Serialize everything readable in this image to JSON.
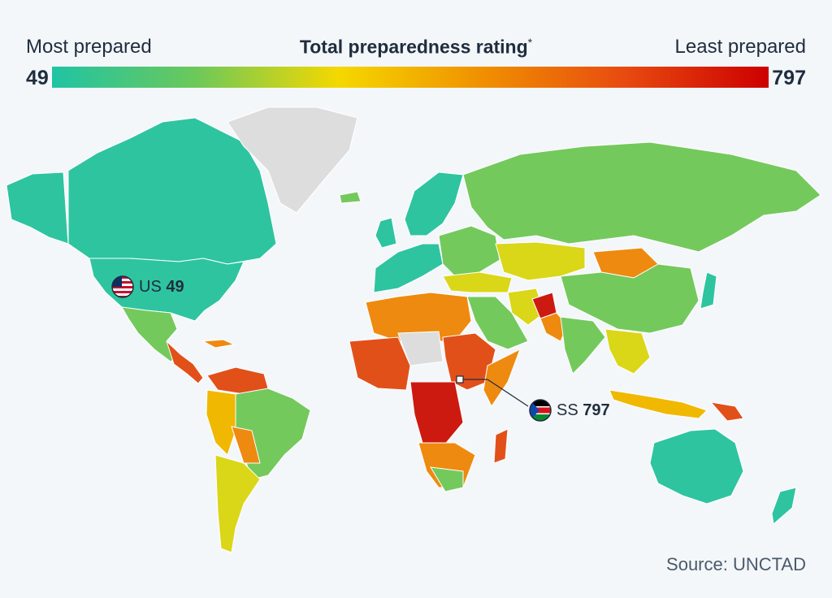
{
  "legend": {
    "left_label": "Most prepared",
    "title": "Total preparedness rating",
    "title_mark": "*",
    "right_label": "Least prepared",
    "min_value": "49",
    "max_value": "797",
    "gradient_colors": [
      "#1fc4a4",
      "#6cc85a",
      "#f5d800",
      "#f09000",
      "#e84a10",
      "#cc0000"
    ]
  },
  "callouts": {
    "us": {
      "code": "US",
      "value": "49",
      "flag": "us-flag-icon"
    },
    "ss": {
      "code": "SS",
      "value": "797",
      "flag": "south-sudan-flag-icon"
    }
  },
  "colors": {
    "no_data": "#dddddd",
    "very_high": "#2ec4a0",
    "high": "#74c95c",
    "mid": "#dad618",
    "mid_low": "#f0b800",
    "low": "#ee8a10",
    "very_low": "#e2501a",
    "lowest": "#cc1a10"
  },
  "source": "Source: UNCTAD"
}
